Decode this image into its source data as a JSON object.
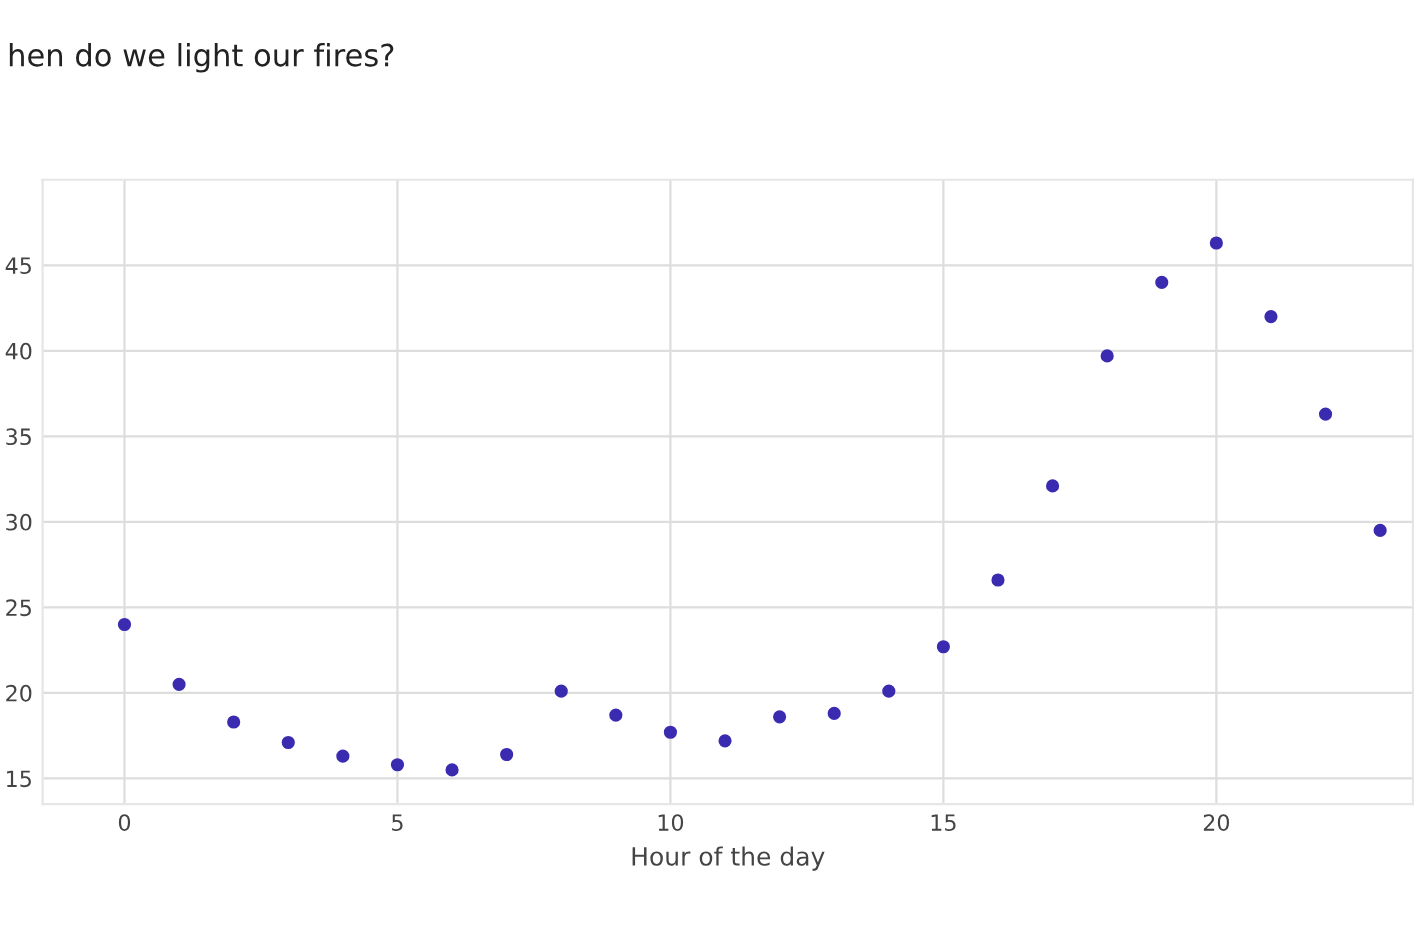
{
  "chart_data": {
    "type": "scatter",
    "title": "hen do we light our fires?",
    "xlabel": "Hour of the day",
    "x": [
      0,
      1,
      2,
      3,
      4,
      5,
      6,
      7,
      8,
      9,
      10,
      11,
      12,
      13,
      14,
      15,
      16,
      17,
      18,
      19,
      20,
      21,
      22,
      23
    ],
    "series": [
      {
        "color": "#3a2bb0",
        "values": [
          24,
          20.5,
          18.3,
          17.1,
          16.3,
          15.8,
          15.5,
          16.4,
          20.1,
          18.7,
          17.7,
          17.2,
          18.6,
          18.8,
          20.1,
          22.7,
          26.6,
          32.1,
          39.7,
          44.0,
          46.3,
          42.0,
          36.3,
          29.5
        ]
      }
    ],
    "xlim": [
      -1.5,
      23.6
    ],
    "ylim": [
      13.5,
      50
    ],
    "xticks": [
      0,
      5,
      10,
      15,
      20
    ],
    "yticks": [
      15,
      20,
      25,
      30,
      35,
      40,
      45
    ],
    "grid": true,
    "marker": "circle"
  }
}
